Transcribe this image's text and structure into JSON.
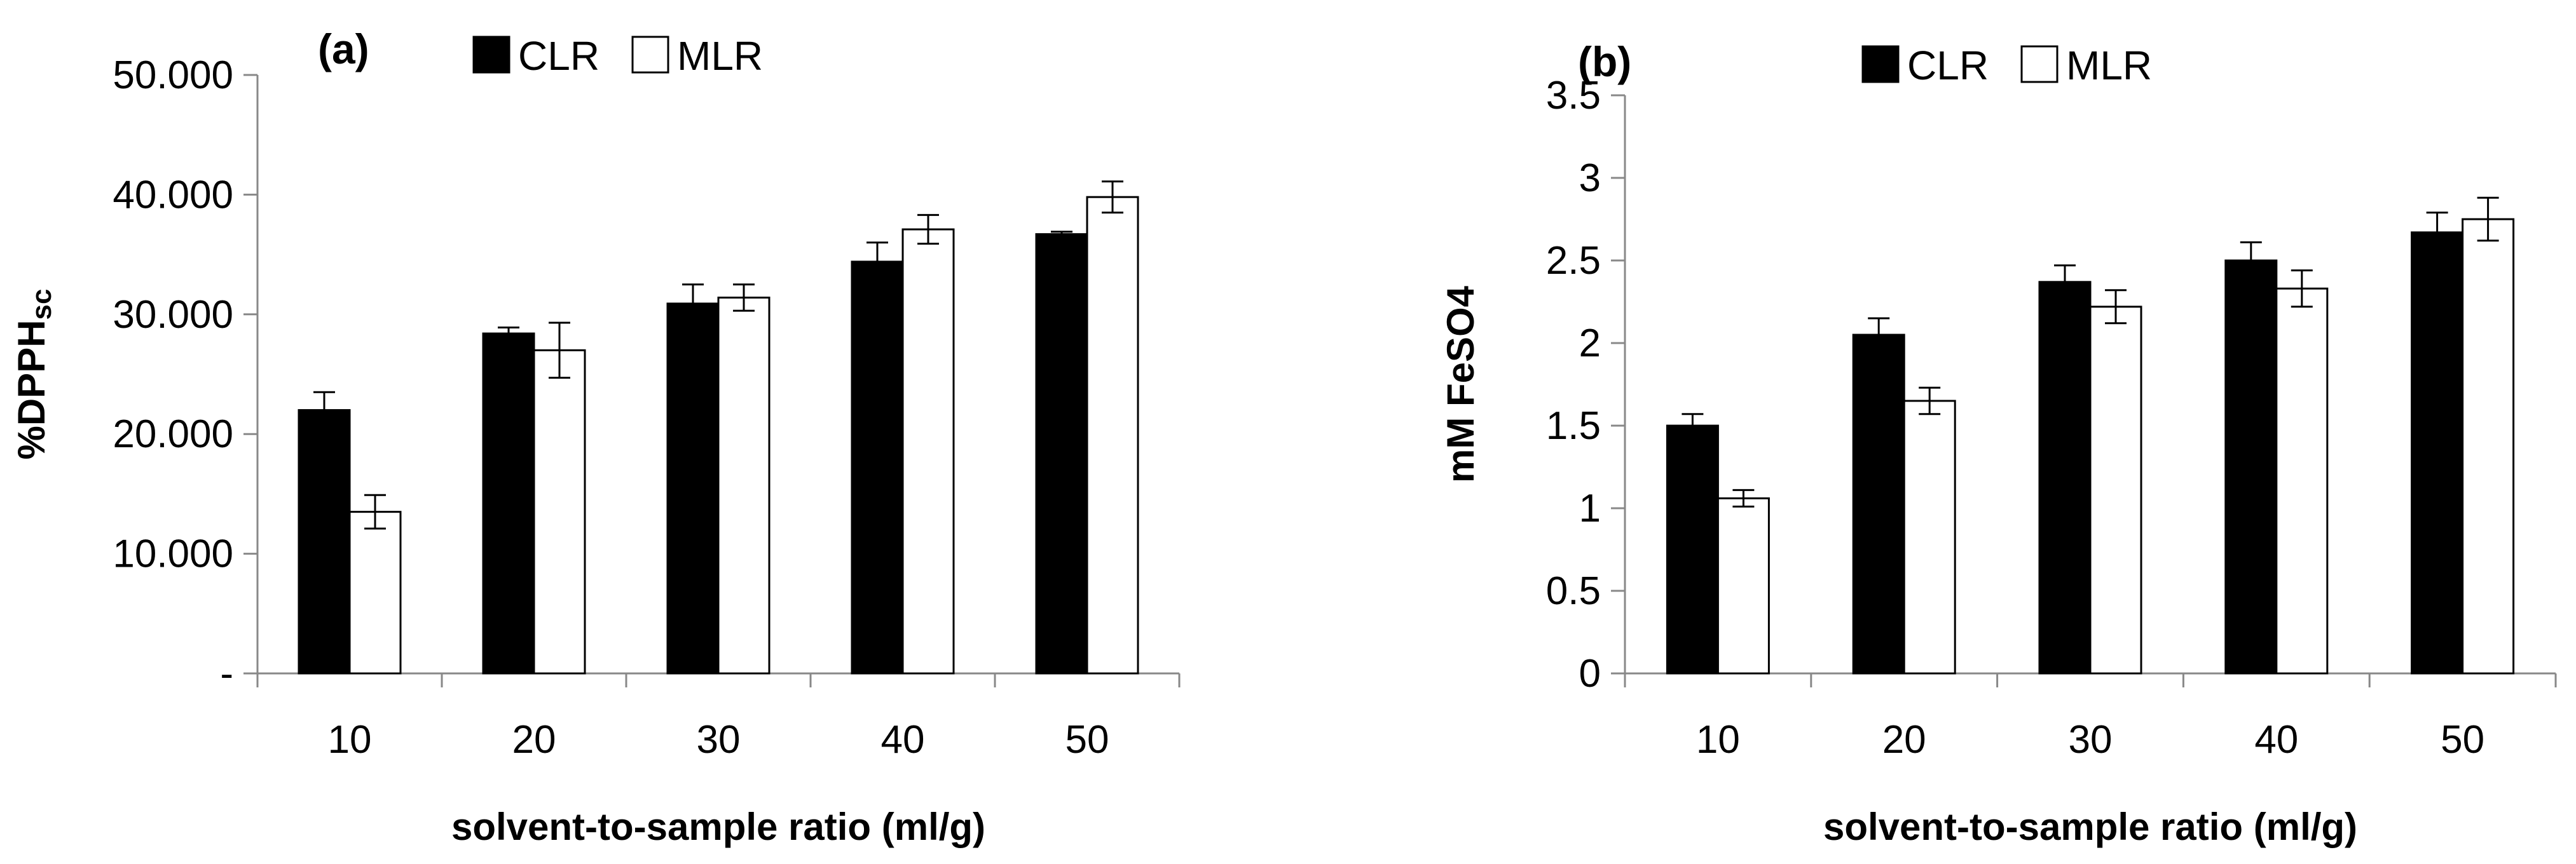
{
  "chart_data": [
    {
      "type": "bar",
      "panel_label": "(a)",
      "categories": [
        "10",
        "20",
        "30",
        "40",
        "50"
      ],
      "xlabel": "solvent-to-sample ratio (ml/g)",
      "ylabel_main": "%DPPH",
      "ylabel_sub": "sc",
      "ylim": [
        0,
        50
      ],
      "yticks": [
        0,
        10,
        20,
        30,
        40,
        50
      ],
      "ytick_labels": [
        "-",
        "10.000",
        "20.000",
        "30.000",
        "40.000",
        "50.000"
      ],
      "legend_position": "top",
      "series": [
        {
          "name": "CLR",
          "color": "#000000",
          "values": [
            22.0,
            28.4,
            30.9,
            34.4,
            36.7
          ],
          "errors": [
            1.5,
            0.5,
            1.6,
            1.6,
            0.2
          ]
        },
        {
          "name": "MLR",
          "color": "#ffffff",
          "values": [
            13.5,
            27.0,
            31.4,
            37.1,
            39.8
          ],
          "errors": [
            1.4,
            2.3,
            1.1,
            1.2,
            1.3
          ]
        }
      ]
    },
    {
      "type": "bar",
      "panel_label": "(b)",
      "categories": [
        "10",
        "20",
        "30",
        "40",
        "50"
      ],
      "xlabel": "solvent-to-sample ratio (ml/g)",
      "ylabel_main": "mM FeSO4",
      "ylabel_sub": "",
      "ylim": [
        0,
        3.5
      ],
      "yticks": [
        0,
        0.5,
        1,
        1.5,
        2,
        2.5,
        3,
        3.5
      ],
      "ytick_labels": [
        "0",
        "0.5",
        "1",
        "1.5",
        "2",
        "2.5",
        "3",
        "3.5"
      ],
      "legend_position": "top",
      "series": [
        {
          "name": "CLR",
          "color": "#000000",
          "values": [
            1.5,
            2.05,
            2.37,
            2.5,
            2.67
          ],
          "errors": [
            0.07,
            0.1,
            0.1,
            0.11,
            0.12
          ]
        },
        {
          "name": "MLR",
          "color": "#ffffff",
          "values": [
            1.06,
            1.65,
            2.22,
            2.33,
            2.75
          ],
          "errors": [
            0.05,
            0.08,
            0.1,
            0.11,
            0.13
          ]
        }
      ]
    }
  ]
}
